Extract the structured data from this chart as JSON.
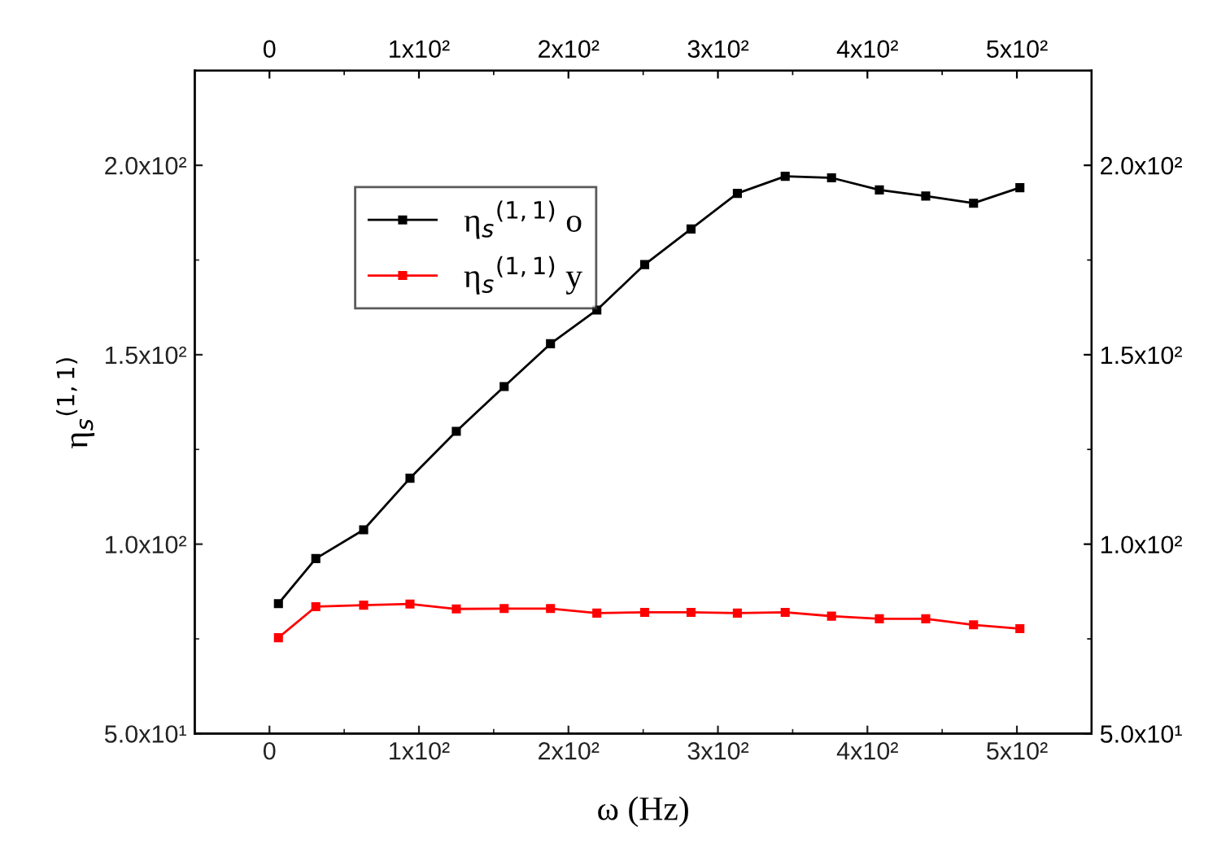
{
  "chart_data": {
    "type": "line",
    "xlabel": "ω (Hz)",
    "ylabel": "η$_{s}$$^{(1,1)}$",
    "x": [
      6,
      31,
      63,
      94,
      125,
      157,
      188,
      219,
      251,
      282,
      313,
      345,
      376,
      408,
      439,
      471,
      502
    ],
    "series": [
      {
        "name": "η$_{s}$$^{(1,1)}$ o",
        "color": "#000000",
        "values": [
          84.3,
          96.2,
          103.8,
          117.4,
          129.8,
          141.6,
          152.9,
          161.8,
          173.8,
          183.2,
          192.6,
          197.1,
          196.7,
          193.5,
          191.9,
          190.0,
          194.1
        ]
      },
      {
        "name": "η$_{s}$$^{(1,1)}$ y",
        "color": "#ff0000",
        "values": [
          75.3,
          83.5,
          83.9,
          84.2,
          82.9,
          83.0,
          83.0,
          81.8,
          82.0,
          82.0,
          81.8,
          82.0,
          81.0,
          80.3,
          80.3,
          78.7,
          77.7
        ]
      }
    ],
    "xlim": [
      -50,
      550
    ],
    "xticks": [
      {
        "value": 0,
        "label": "0"
      },
      {
        "value": 100,
        "label": "1x10²"
      },
      {
        "value": 200,
        "label": "2x10²"
      },
      {
        "value": 300,
        "label": "3x10²"
      },
      {
        "value": 400,
        "label": "4x10²"
      },
      {
        "value": 500,
        "label": "5x10²"
      }
    ],
    "x2lim": [
      -50,
      550
    ],
    "x2ticks": [
      {
        "value": 0,
        "label": "0"
      },
      {
        "value": 100,
        "label": "1x10²"
      },
      {
        "value": 200,
        "label": "2x10²"
      },
      {
        "value": 300,
        "label": "3x10²"
      },
      {
        "value": 400,
        "label": "4x10²"
      },
      {
        "value": 500,
        "label": "5x10²"
      }
    ],
    "ylim": [
      50,
      225
    ],
    "yticks": [
      {
        "value": 50,
        "label": "5.0x10¹"
      },
      {
        "value": 100,
        "label": "1.0x10²"
      },
      {
        "value": 150,
        "label": "1.5x10²"
      },
      {
        "value": 200,
        "label": "2.0x10²"
      }
    ],
    "y2lim": [
      50,
      225
    ],
    "y2ticks": [
      {
        "value": 50,
        "label": "5.0x10¹"
      },
      {
        "value": 100,
        "label": "1.0x10²"
      },
      {
        "value": 150,
        "label": "1.5x10²"
      },
      {
        "value": 200,
        "label": "2.0x10²"
      }
    ],
    "marker": "square",
    "line_style": "solid",
    "grid": false,
    "legend": "top left"
  }
}
